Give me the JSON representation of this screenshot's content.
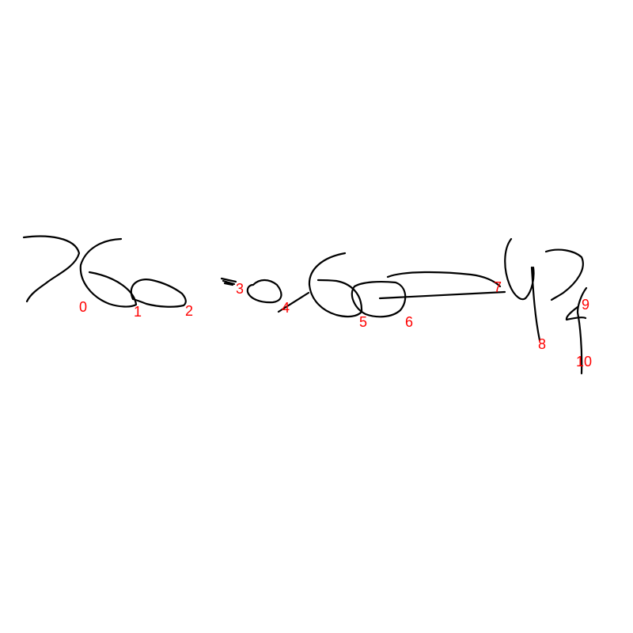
{
  "colors": {
    "background": "#ffffff",
    "ink": "#000000",
    "label": "#ff0000"
  },
  "labels": [
    "0",
    "1",
    "2",
    "3",
    "4",
    "5",
    "6",
    "7",
    "8",
    "9",
    "10"
  ]
}
